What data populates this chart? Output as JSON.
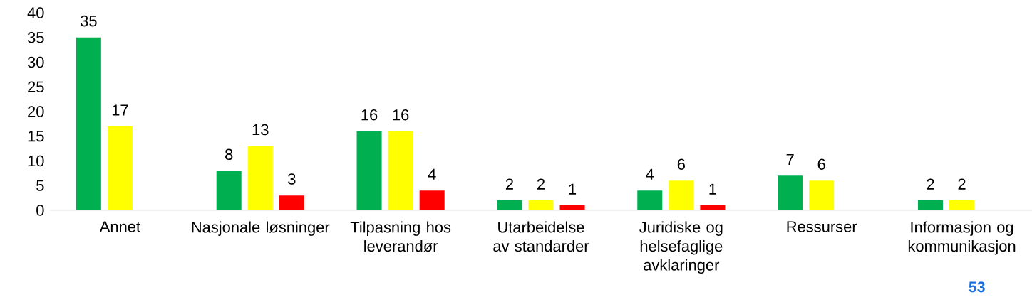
{
  "chart_data": {
    "type": "bar",
    "categories": [
      "Annet",
      "Nasjonale løsninger",
      "Tilpasning hos leverandør",
      "Utarbeidelse av standarder",
      "Juridiske og helsefaglige avklaringer",
      "Ressurser",
      "Informasjon og kommunikasjon"
    ],
    "series": [
      {
        "color": "#00b050",
        "values": [
          35,
          8,
          16,
          2,
          4,
          7,
          2
        ]
      },
      {
        "color": "#ffff00",
        "values": [
          17,
          13,
          16,
          2,
          6,
          6,
          2
        ]
      },
      {
        "color": "#ff0000",
        "values": [
          null,
          3,
          4,
          1,
          1,
          null,
          null
        ]
      }
    ],
    "ylim": [
      0,
      40
    ],
    "yticks": [
      0,
      5,
      10,
      15,
      20,
      25,
      30,
      35,
      40
    ],
    "data_labels": true,
    "grid": false,
    "annotations": [
      "53"
    ]
  }
}
